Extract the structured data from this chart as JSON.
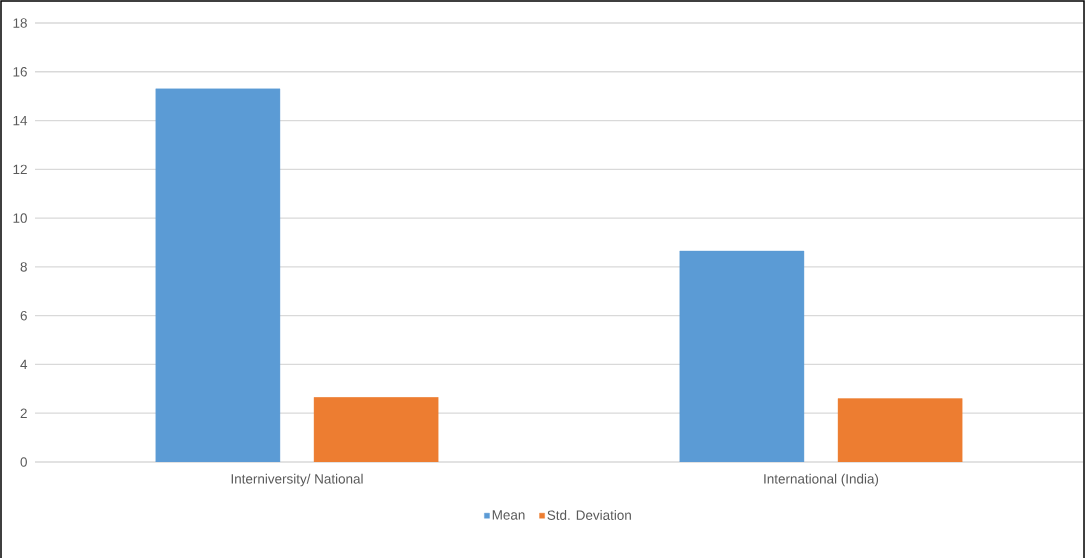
{
  "chart_data": {
    "type": "bar",
    "categories": [
      "Interniversity/ National",
      "International (India)"
    ],
    "series": [
      {
        "name": "Mean",
        "color": "#5b9bd5",
        "values": [
          15.3,
          8.65
        ]
      },
      {
        "name": "Std. Deviation",
        "color": "#ed7d31",
        "values": [
          2.65,
          2.6
        ]
      }
    ],
    "ylim": [
      0,
      18
    ],
    "yticks": [
      0,
      2,
      4,
      6,
      8,
      10,
      12,
      14,
      16,
      18
    ],
    "grid": "y",
    "legend": "bottom"
  }
}
